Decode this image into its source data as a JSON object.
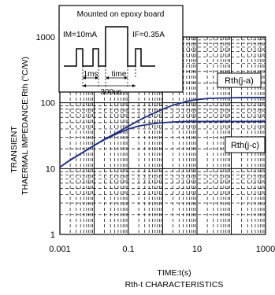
{
  "chart_data": {
    "type": "line",
    "title": "Rth-t CHARACTERISTICS",
    "xlabel": "TIME:t(s)",
    "ylabel_line1": "TRANSIENT",
    "ylabel_line2": "THAERMAL IMPEDANCE:Rth (°C/W)",
    "x_scale": "log",
    "y_scale": "log",
    "xlim": [
      0.001,
      1000
    ],
    "ylim": [
      1,
      1000
    ],
    "x_ticks": [
      0.001,
      0.1,
      10,
      1000
    ],
    "x_tick_labels": [
      "0.001",
      "0.1",
      "10",
      "1000"
    ],
    "y_ticks": [
      1,
      10,
      100,
      1000
    ],
    "y_tick_labels": [
      "1",
      "10",
      "100",
      "1000"
    ],
    "grid": true,
    "series": [
      {
        "name": "Rth(j-a)",
        "color": "#1f2f7f",
        "x": [
          0.001,
          0.002,
          0.005,
          0.01,
          0.02,
          0.05,
          0.1,
          0.2,
          0.5,
          1,
          2,
          5,
          10,
          20,
          50,
          100,
          200,
          500,
          1000
        ],
        "y": [
          10.5,
          13.5,
          18,
          22.5,
          28,
          36,
          44,
          54,
          68,
          80,
          92,
          105,
          112,
          116,
          118,
          119,
          120,
          120,
          120
        ]
      },
      {
        "name": "Rth(j-c)",
        "color": "#1f2f7f",
        "x": [
          0.001,
          0.002,
          0.005,
          0.01,
          0.02,
          0.05,
          0.1,
          0.2,
          0.5,
          1,
          2,
          5,
          10,
          20,
          50,
          100,
          200,
          500,
          1000
        ],
        "y": [
          10.5,
          13.5,
          18,
          22.5,
          27.5,
          34.5,
          40,
          44.5,
          48,
          50,
          51,
          52,
          52,
          52,
          52,
          52,
          52,
          52,
          52
        ]
      }
    ],
    "inset": {
      "title": "Mounted on epoxy board",
      "im_label": "IM=10mA",
      "if_label": "IF=0.35A",
      "t1_label": "1ms",
      "t2_label": "time",
      "t3_label": "300us"
    }
  }
}
